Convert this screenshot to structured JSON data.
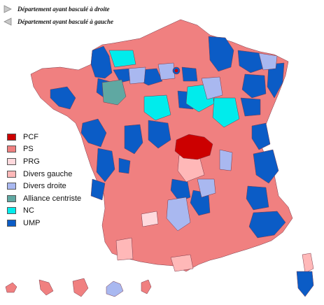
{
  "top_legend": [
    {
      "label": "Département ayant basculé à droite",
      "icon": "triangle-right-icon"
    },
    {
      "label": "Département ayant basculé à gauche",
      "icon": "triangle-left-icon"
    }
  ],
  "legend": [
    {
      "label": "PCF",
      "color": "#cc0000"
    },
    {
      "label": "PS",
      "color": "#f08080"
    },
    {
      "label": "PRG",
      "color": "#ffd9dd"
    },
    {
      "label": "Divers gauche",
      "color": "#ffb8b8"
    },
    {
      "label": "Divers droite",
      "color": "#a9b8f0"
    },
    {
      "label": "Alliance centriste",
      "color": "#5fa8a2"
    },
    {
      "label": "NC",
      "color": "#00ecec"
    },
    {
      "label": "UMP",
      "color": "#0b5cc6"
    }
  ],
  "colors": {
    "background": "#ffffff",
    "border": "#7a3a4a"
  }
}
